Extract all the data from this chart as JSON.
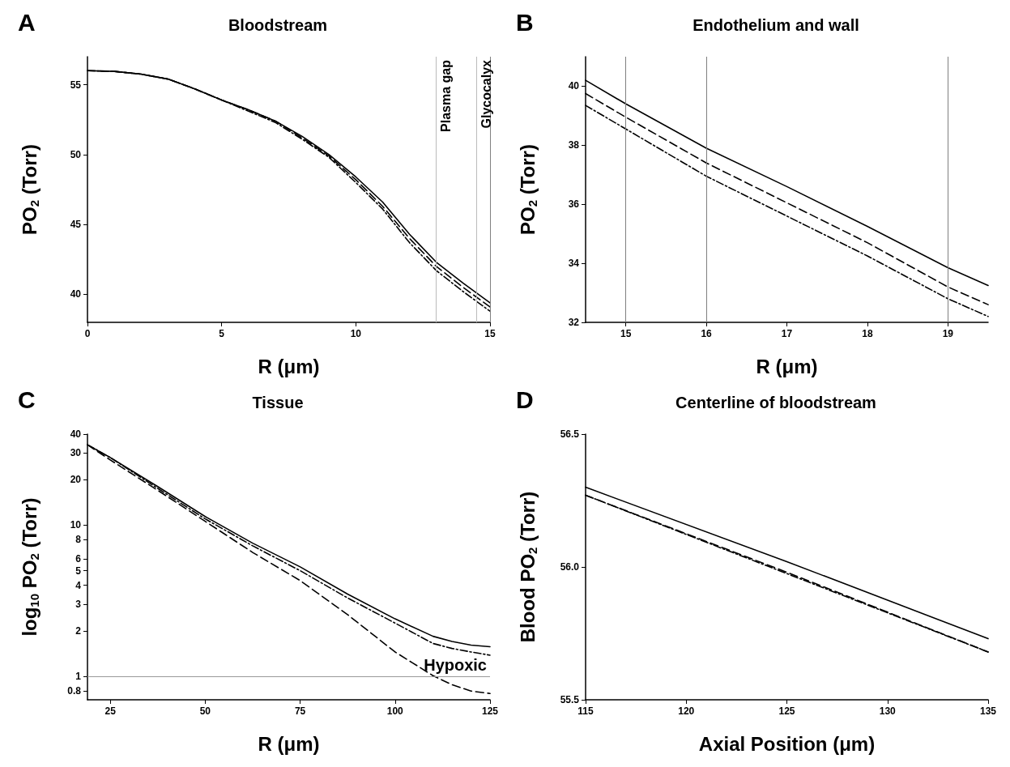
{
  "chart_data": [
    {
      "type": "line",
      "title": "Bloodstream",
      "annotations": [
        "A"
      ],
      "xlabel": "R (μm)",
      "ylabel": "PO$_{2}$ (Torr)",
      "x": [
        0,
        1,
        2,
        3,
        4,
        5,
        6,
        7,
        8,
        9,
        10,
        11,
        12,
        13,
        14,
        15
      ],
      "xlim": [
        0,
        15
      ],
      "xticks": [
        0,
        5,
        10,
        15
      ],
      "ylim": [
        38,
        57
      ],
      "yticks": [
        40,
        45,
        50,
        55
      ],
      "grid": false,
      "marker": "none",
      "series": [
        {
          "color": "#000000",
          "line_style": "solid",
          "values": [
            56.0,
            55.95,
            55.75,
            55.4,
            54.7,
            53.9,
            53.2,
            52.4,
            51.3,
            50.0,
            48.4,
            46.6,
            44.3,
            42.3,
            40.8,
            39.4
          ]
        },
        {
          "color": "#000000",
          "line_style": "dashed",
          "values": [
            56.0,
            55.95,
            55.75,
            55.4,
            54.7,
            53.9,
            53.2,
            52.4,
            51.2,
            49.9,
            48.2,
            46.3,
            44.0,
            42.0,
            40.5,
            39.1
          ]
        },
        {
          "color": "#000000",
          "line_style": "dotted",
          "values": [
            56.0,
            55.95,
            55.75,
            55.4,
            54.7,
            53.9,
            53.1,
            52.3,
            51.1,
            49.8,
            48.0,
            46.1,
            43.7,
            41.7,
            40.2,
            38.8
          ]
        }
      ],
      "ref_lines": [
        {
          "axis": "x",
          "value": 13,
          "label": "Plasma gap",
          "color": "#bbbbbb"
        },
        {
          "axis": "x",
          "value": 14.5,
          "label": "Glycocalyx",
          "color": "#bbbbbb"
        },
        {
          "axis": "x",
          "value": 15,
          "label": null,
          "color": "#808080"
        }
      ]
    },
    {
      "type": "line",
      "title": "Endothelium and wall",
      "annotations": [
        "B"
      ],
      "xlabel": "R (μm)",
      "ylabel": "PO$_{2}$ (Torr)",
      "x": [
        14.5,
        15,
        16,
        17,
        18,
        19,
        19.5
      ],
      "xlim": [
        14.5,
        19.5
      ],
      "xticks": [
        15,
        16,
        17,
        18,
        19
      ],
      "ylim": [
        32,
        41
      ],
      "yticks": [
        32,
        34,
        36,
        38,
        40
      ],
      "grid": false,
      "marker": "none",
      "series": [
        {
          "color": "#000000",
          "line_style": "solid",
          "values": [
            40.2,
            39.4,
            37.9,
            36.6,
            35.25,
            33.85,
            33.25
          ]
        },
        {
          "color": "#000000",
          "line_style": "dashed",
          "values": [
            39.75,
            38.95,
            37.4,
            36.05,
            34.7,
            33.2,
            32.6
          ]
        },
        {
          "color": "#000000",
          "line_style": "dotted",
          "values": [
            39.35,
            38.55,
            36.95,
            35.6,
            34.25,
            32.8,
            32.2
          ]
        }
      ],
      "ref_lines": [
        {
          "axis": "x",
          "value": 15,
          "label": null,
          "color": "#808080"
        },
        {
          "axis": "x",
          "value": 16,
          "label": null,
          "color": "#808080"
        },
        {
          "axis": "x",
          "value": 19,
          "label": null,
          "color": "#808080"
        }
      ]
    },
    {
      "type": "line",
      "title": "Tissue",
      "annotations": [
        "C"
      ],
      "xlabel": "R (μm)",
      "ylabel": "log$_{10}$ PO$_{2}$ (Torr)",
      "x": [
        19,
        25,
        37.5,
        50,
        62.5,
        75,
        87.5,
        100,
        110,
        115,
        120,
        125
      ],
      "xlim": [
        19,
        125
      ],
      "xticks": [
        25,
        50,
        75,
        100,
        125
      ],
      "ylim": [
        0.7,
        40
      ],
      "yticks": [
        0.8,
        1,
        2,
        3,
        4,
        5,
        6,
        8,
        10,
        20,
        30,
        40
      ],
      "log": "y",
      "grid": false,
      "marker": "none",
      "series": [
        {
          "color": "#000000",
          "line_style": "solid",
          "values": [
            34,
            28,
            18,
            11.4,
            7.6,
            5.3,
            3.5,
            2.4,
            1.84,
            1.7,
            1.61,
            1.57
          ]
        },
        {
          "color": "#000000",
          "line_style": "dashed",
          "values": [
            34,
            27,
            17,
            10.6,
            6.6,
            4.3,
            2.56,
            1.45,
            1.01,
            0.88,
            0.8,
            0.77
          ]
        },
        {
          "color": "#000000",
          "line_style": "dotted",
          "values": [
            34,
            28,
            17.5,
            11,
            7.3,
            5.0,
            3.3,
            2.25,
            1.65,
            1.53,
            1.45,
            1.38
          ]
        }
      ],
      "ref_lines": [
        {
          "axis": "y",
          "value": 1,
          "label": "Hypoxic",
          "color": "#999999"
        }
      ]
    },
    {
      "type": "line",
      "title": "Centerline of bloodstream",
      "annotations": [
        "D"
      ],
      "xlabel": "Axial Position (μm)",
      "ylabel": "Blood PO$_{2}$ (Torr)",
      "x": [
        115,
        125,
        135
      ],
      "xlim": [
        115,
        135
      ],
      "xticks": [
        115,
        120,
        125,
        130,
        135
      ],
      "ylim": [
        55.5,
        56.5
      ],
      "yticks": [
        {
          "value": 55.5,
          "label": "55.5"
        },
        {
          "value": 56,
          "label": "56.0"
        },
        {
          "value": 56.5,
          "label": "56.5"
        }
      ],
      "grid": false,
      "marker": "none",
      "series": [
        {
          "color": "#000000",
          "line_style": "solid",
          "values": [
            56.3,
            56.02,
            55.73
          ]
        },
        {
          "color": "#000000",
          "line_style": "dashed",
          "values": [
            56.27,
            55.98,
            55.68
          ]
        },
        {
          "color": "#000000",
          "line_style": "dotted",
          "values": [
            56.27,
            55.975,
            55.68
          ]
        }
      ]
    }
  ]
}
